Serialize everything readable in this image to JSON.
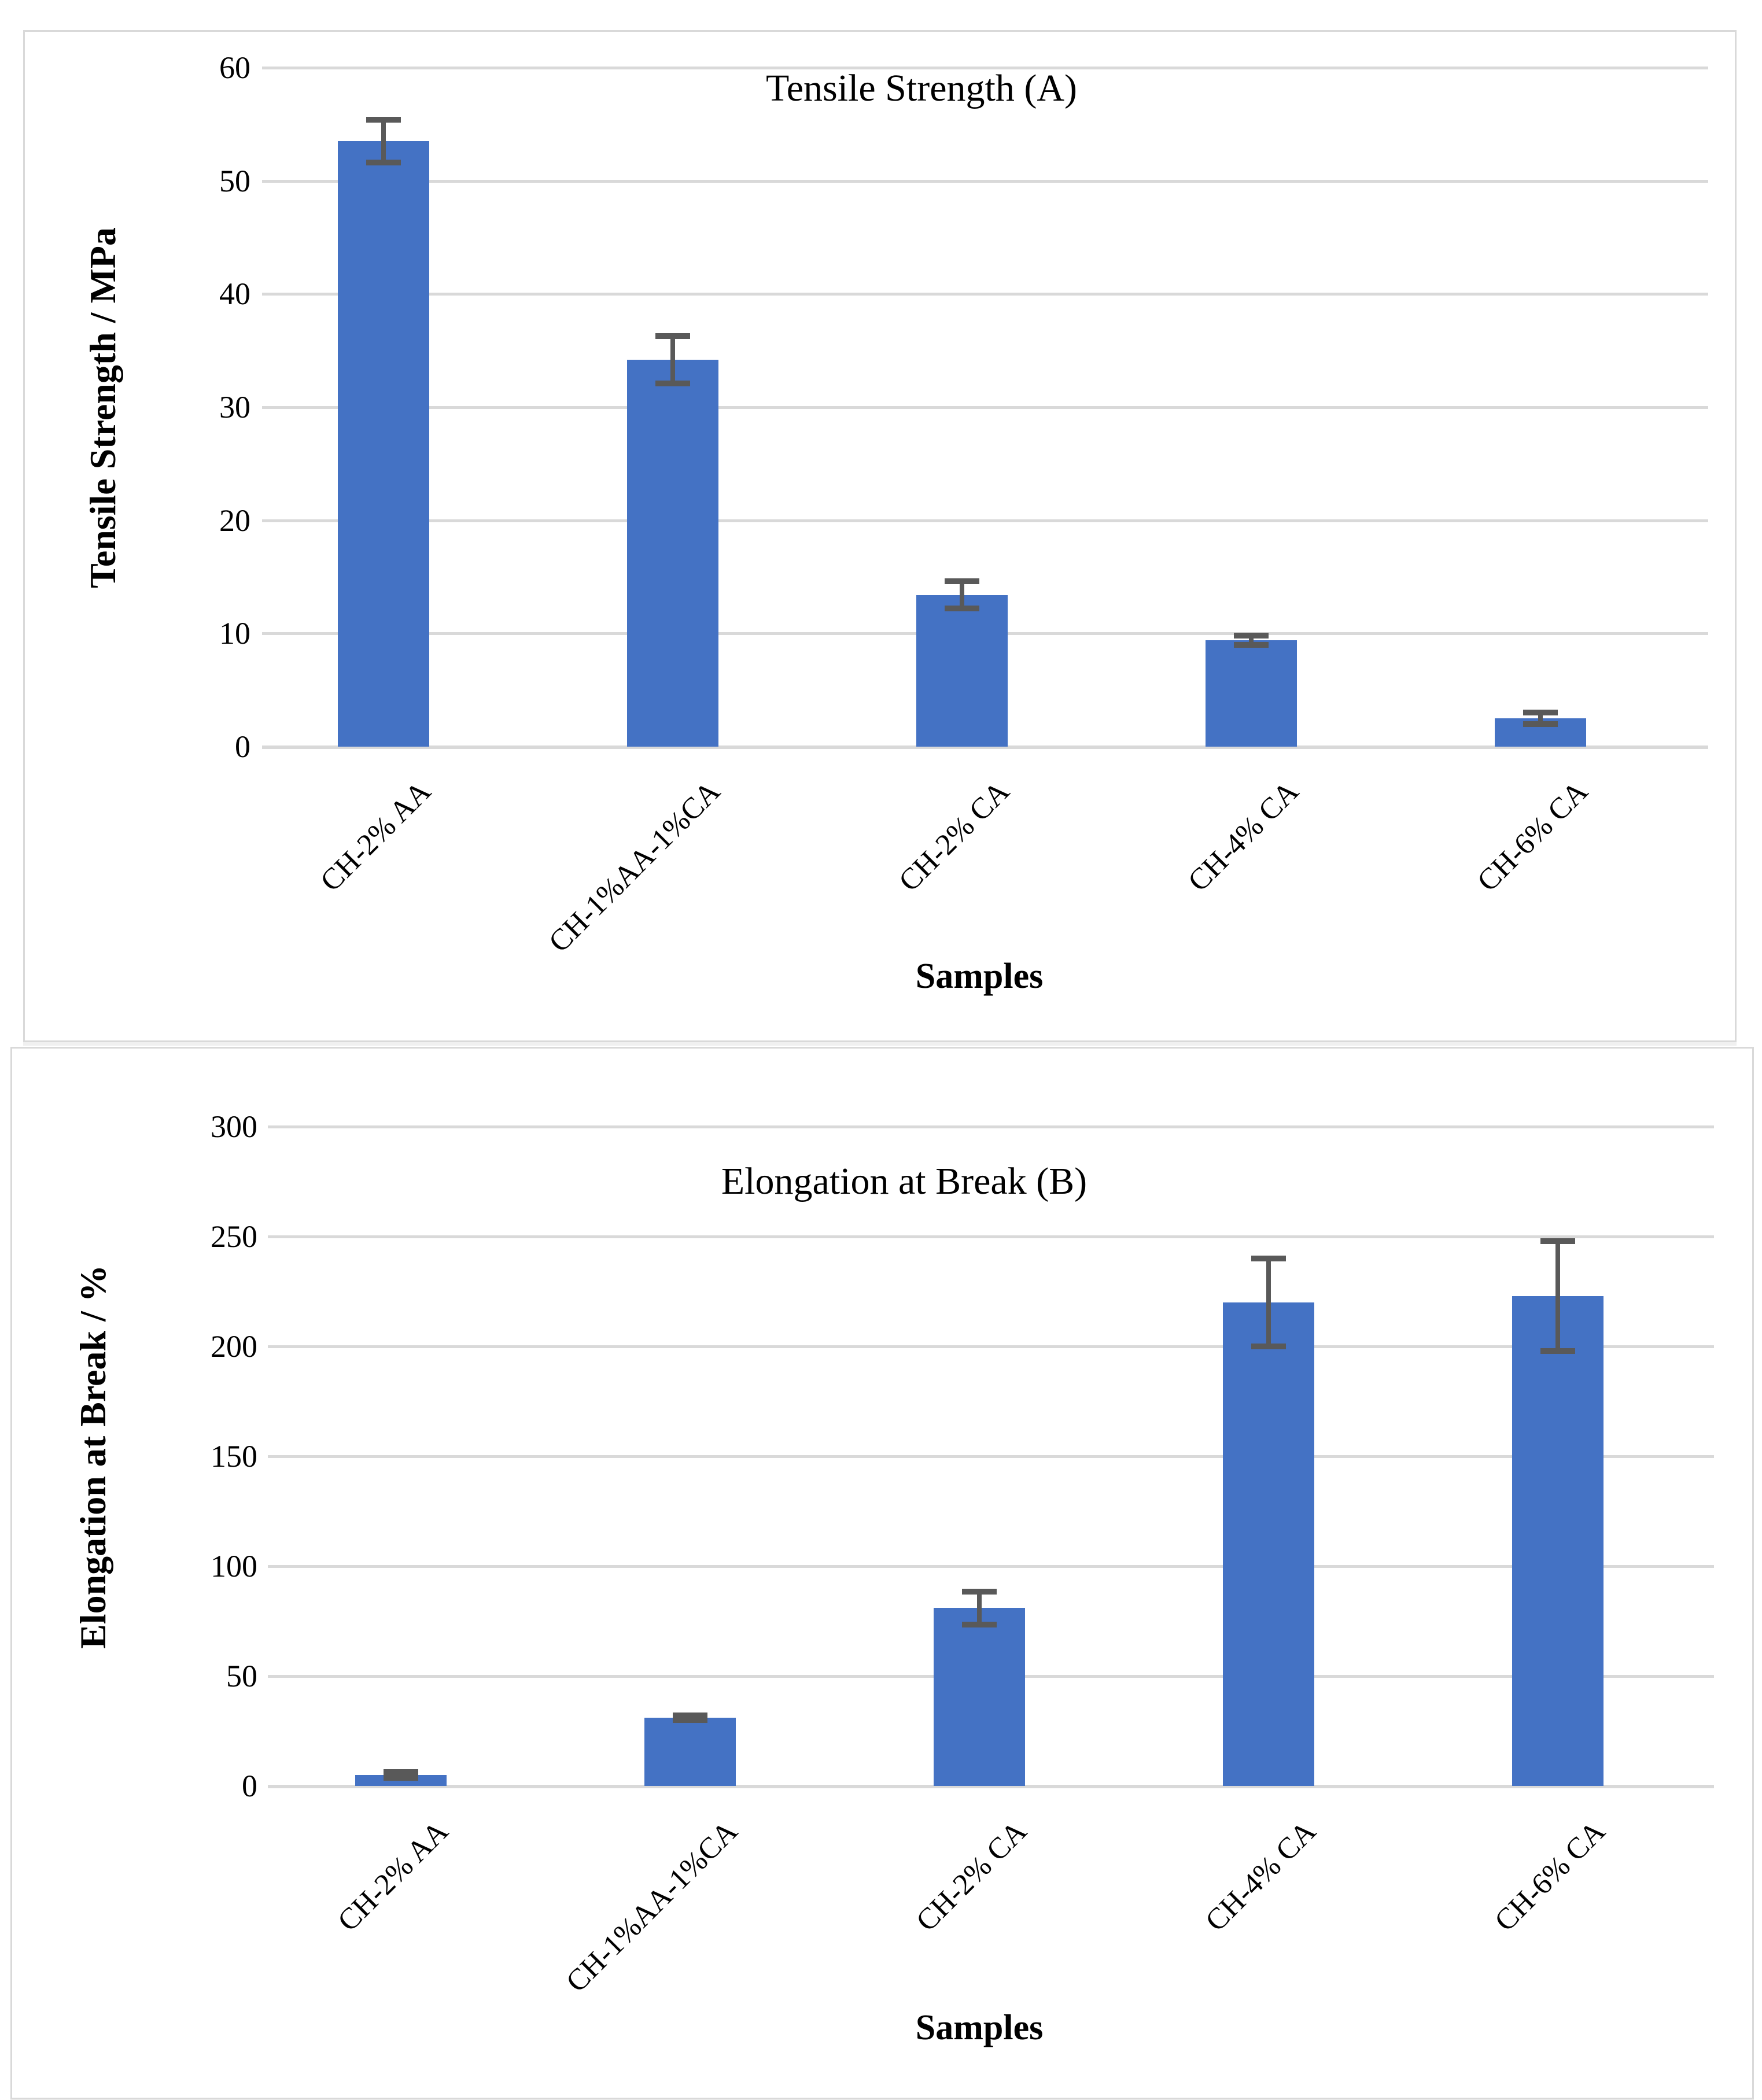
{
  "page": {
    "background": "#ffffff",
    "panel_border_color": "#d9d9d9"
  },
  "chart_data": [
    {
      "type": "bar",
      "panel": "A",
      "title": "Tensile Strength (A)",
      "xlabel": "Samples",
      "ylabel": "Tensile Strength / MPa",
      "categories": [
        "CH-2% AA",
        "CH-1%AA-1%CA",
        "CH-2% CA",
        "CH-4% CA",
        "CH-6% CA"
      ],
      "values": [
        53.5,
        34.2,
        13.4,
        9.4,
        2.5
      ],
      "errors": [
        1.9,
        2.1,
        1.2,
        0.4,
        0.5
      ],
      "ylim": [
        0,
        60
      ],
      "yticks": [
        0,
        10,
        20,
        30,
        40,
        50,
        60
      ],
      "grid": true,
      "legend": "none",
      "bar_color": "#4472C4",
      "error_color": "#595959",
      "grid_color": "#d9d9d9"
    },
    {
      "type": "bar",
      "panel": "B",
      "title": "Elongation at Break (B)",
      "xlabel": "Samples",
      "ylabel": "Elongation at Break / %",
      "categories": [
        "CH-2% AA",
        "CH-1%AA-1%CA",
        "CH-2% CA",
        "CH-4% CA",
        "CH-6% CA"
      ],
      "values": [
        5,
        31,
        81,
        220,
        223
      ],
      "errors": [
        1.2,
        1.0,
        7.5,
        20,
        25
      ],
      "ylim": [
        0,
        300
      ],
      "yticks": [
        0,
        50,
        100,
        150,
        200,
        250,
        300
      ],
      "grid": true,
      "legend": "none",
      "bar_color": "#4472C4",
      "error_color": "#595959",
      "grid_color": "#d9d9d9"
    }
  ]
}
